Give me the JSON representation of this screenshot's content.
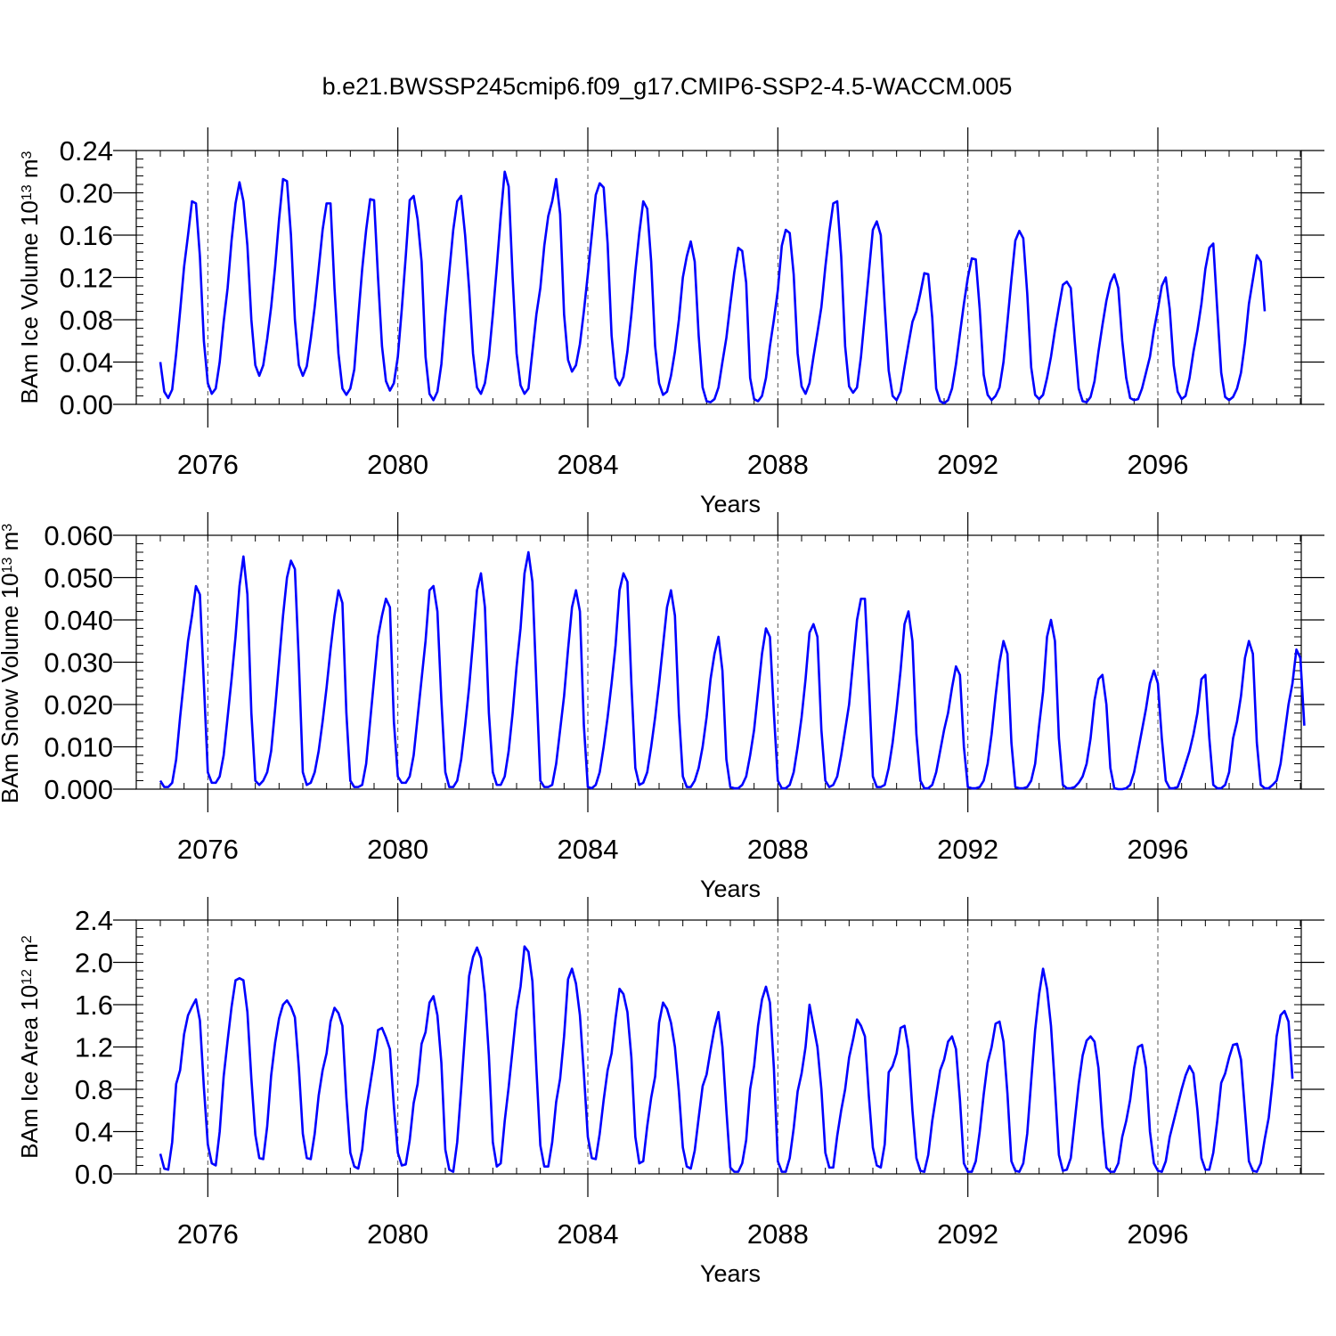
{
  "title": "b.e21.BWSSP245cmip6.f09_g17.CMIP6-SSP2-4.5-WACCM.005",
  "colors": {
    "line": "#0000ff",
    "axes": "#000000",
    "grid": "#000000"
  },
  "chart_data": [
    {
      "type": "line",
      "ylabel_main": "BAm Ice Volume 10",
      "ylabel_exp": "13",
      "ylabel_unit": " m",
      "ylabel_unit_exp": "3",
      "xlabel": "Years",
      "xlim": [
        2075,
        2099
      ],
      "ylim": [
        0,
        0.24
      ],
      "xticks": [
        2076,
        2080,
        2084,
        2088,
        2092,
        2096
      ],
      "xtick_labels": [
        "2076",
        "2080",
        "2084",
        "2088",
        "2092",
        "2096"
      ],
      "yticks": [
        0,
        0.04,
        0.08,
        0.12,
        0.16,
        0.2,
        0.24
      ],
      "ytick_labels": [
        "0.00",
        "0.04",
        "0.08",
        "0.12",
        "0.16",
        "0.20",
        "0.24"
      ],
      "minor_y_step": 0.008,
      "vertical_dashed_grid": true,
      "series": [
        {
          "x_start": 2075.0,
          "x_step": 0.08333333,
          "values": [
            0.04,
            0.012,
            0.006,
            0.014,
            0.048,
            0.088,
            0.13,
            0.16,
            0.192,
            0.19,
            0.14,
            0.06,
            0.02,
            0.01,
            0.015,
            0.04,
            0.078,
            0.11,
            0.155,
            0.19,
            0.21,
            0.192,
            0.15,
            0.08,
            0.037,
            0.027,
            0.037,
            0.062,
            0.092,
            0.13,
            0.175,
            0.213,
            0.211,
            0.16,
            0.08,
            0.037,
            0.027,
            0.036,
            0.062,
            0.092,
            0.128,
            0.165,
            0.19,
            0.19,
            0.11,
            0.048,
            0.015,
            0.009,
            0.015,
            0.033,
            0.082,
            0.128,
            0.165,
            0.194,
            0.193,
            0.12,
            0.055,
            0.022,
            0.013,
            0.02,
            0.045,
            0.09,
            0.14,
            0.193,
            0.197,
            0.175,
            0.135,
            0.045,
            0.01,
            0.004,
            0.012,
            0.038,
            0.085,
            0.125,
            0.165,
            0.192,
            0.197,
            0.16,
            0.11,
            0.048,
            0.016,
            0.01,
            0.02,
            0.045,
            0.085,
            0.13,
            0.178,
            0.22,
            0.206,
            0.12,
            0.048,
            0.018,
            0.01,
            0.015,
            0.05,
            0.085,
            0.11,
            0.15,
            0.178,
            0.192,
            0.213,
            0.18,
            0.085,
            0.042,
            0.031,
            0.037,
            0.057,
            0.088,
            0.123,
            0.16,
            0.198,
            0.209,
            0.205,
            0.152,
            0.065,
            0.025,
            0.018,
            0.026,
            0.05,
            0.085,
            0.126,
            0.162,
            0.192,
            0.185,
            0.135,
            0.055,
            0.02,
            0.009,
            0.012,
            0.027,
            0.05,
            0.08,
            0.12,
            0.14,
            0.154,
            0.135,
            0.065,
            0.016,
            0.003,
            0.002,
            0.005,
            0.016,
            0.04,
            0.063,
            0.095,
            0.125,
            0.148,
            0.145,
            0.115,
            0.025,
            0.005,
            0.003,
            0.008,
            0.025,
            0.055,
            0.08,
            0.108,
            0.15,
            0.165,
            0.162,
            0.123,
            0.048,
            0.017,
            0.01,
            0.02,
            0.045,
            0.068,
            0.092,
            0.13,
            0.163,
            0.19,
            0.192,
            0.14,
            0.055,
            0.017,
            0.011,
            0.016,
            0.045,
            0.085,
            0.125,
            0.165,
            0.173,
            0.16,
            0.093,
            0.032,
            0.008,
            0.004,
            0.012,
            0.035,
            0.057,
            0.078,
            0.088,
            0.105,
            0.124,
            0.123,
            0.082,
            0.015,
            0.003,
            0.001,
            0.004,
            0.015,
            0.038,
            0.067,
            0.095,
            0.12,
            0.138,
            0.137,
            0.09,
            0.028,
            0.009,
            0.004,
            0.008,
            0.016,
            0.04,
            0.078,
            0.118,
            0.155,
            0.164,
            0.157,
            0.105,
            0.035,
            0.009,
            0.005,
            0.009,
            0.025,
            0.045,
            0.07,
            0.092,
            0.113,
            0.116,
            0.11,
            0.06,
            0.015,
            0.003,
            0.002,
            0.007,
            0.022,
            0.05,
            0.075,
            0.098,
            0.115,
            0.123,
            0.11,
            0.06,
            0.025,
            0.006,
            0.004,
            0.005,
            0.015,
            0.03,
            0.045,
            0.07,
            0.09,
            0.112,
            0.12,
            0.09,
            0.037,
            0.012,
            0.005,
            0.008,
            0.025,
            0.05,
            0.07,
            0.095,
            0.128,
            0.148,
            0.152,
            0.09,
            0.03,
            0.007,
            0.004,
            0.007,
            0.015,
            0.03,
            0.058,
            0.095,
            0.118,
            0.141,
            0.135,
            0.088
          ]
        }
      ]
    },
    {
      "type": "line",
      "ylabel_main": "BAm Snow Volume 10",
      "ylabel_exp": "13",
      "ylabel_unit": " m",
      "ylabel_unit_exp": "3",
      "xlabel": "Years",
      "xlim": [
        2075,
        2099
      ],
      "ylim": [
        0,
        0.06
      ],
      "xticks": [
        2076,
        2080,
        2084,
        2088,
        2092,
        2096
      ],
      "xtick_labels": [
        "2076",
        "2080",
        "2084",
        "2088",
        "2092",
        "2096"
      ],
      "yticks": [
        0,
        0.01,
        0.02,
        0.03,
        0.04,
        0.05,
        0.06
      ],
      "ytick_labels": [
        "0.000",
        "0.010",
        "0.020",
        "0.030",
        "0.040",
        "0.050",
        "0.060"
      ],
      "minor_y_step": 0.002,
      "vertical_dashed_grid": true,
      "series": [
        {
          "x_start": 2075.0,
          "x_step": 0.08333333,
          "values": [
            0.002,
            0.0005,
            0.0005,
            0.0015,
            0.007,
            0.017,
            0.026,
            0.035,
            0.041,
            0.048,
            0.046,
            0.025,
            0.004,
            0.0015,
            0.0015,
            0.003,
            0.008,
            0.017,
            0.026,
            0.036,
            0.048,
            0.055,
            0.046,
            0.018,
            0.002,
            0.001,
            0.002,
            0.004,
            0.009,
            0.019,
            0.03,
            0.041,
            0.05,
            0.054,
            0.052,
            0.03,
            0.004,
            0.001,
            0.0015,
            0.004,
            0.009,
            0.016,
            0.024,
            0.033,
            0.041,
            0.047,
            0.044,
            0.018,
            0.002,
            0.0005,
            0.0005,
            0.001,
            0.006,
            0.016,
            0.026,
            0.036,
            0.041,
            0.045,
            0.043,
            0.016,
            0.003,
            0.0015,
            0.0015,
            0.003,
            0.008,
            0.017,
            0.026,
            0.035,
            0.047,
            0.048,
            0.042,
            0.021,
            0.004,
            0.0005,
            0.0005,
            0.002,
            0.007,
            0.015,
            0.024,
            0.035,
            0.047,
            0.051,
            0.043,
            0.018,
            0.004,
            0.001,
            0.001,
            0.003,
            0.009,
            0.018,
            0.029,
            0.038,
            0.051,
            0.056,
            0.049,
            0.025,
            0.002,
            0.0005,
            0.0005,
            0.001,
            0.006,
            0.014,
            0.022,
            0.033,
            0.043,
            0.047,
            0.042,
            0.015,
            0.0005,
            0.0002,
            0.001,
            0.004,
            0.01,
            0.017,
            0.025,
            0.034,
            0.047,
            0.051,
            0.049,
            0.025,
            0.005,
            0.001,
            0.0015,
            0.004,
            0.01,
            0.017,
            0.025,
            0.034,
            0.043,
            0.047,
            0.041,
            0.018,
            0.003,
            0.0005,
            0.0005,
            0.002,
            0.005,
            0.01,
            0.017,
            0.026,
            0.032,
            0.036,
            0.028,
            0.007,
            0.0005,
            0.0002,
            0.0002,
            0.001,
            0.003,
            0.008,
            0.014,
            0.023,
            0.032,
            0.038,
            0.036,
            0.018,
            0.002,
            0.0002,
            0.0002,
            0.001,
            0.004,
            0.01,
            0.017,
            0.026,
            0.037,
            0.039,
            0.036,
            0.014,
            0.002,
            0.0005,
            0.001,
            0.003,
            0.008,
            0.014,
            0.02,
            0.03,
            0.04,
            0.045,
            0.045,
            0.025,
            0.003,
            0.0005,
            0.0005,
            0.001,
            0.005,
            0.011,
            0.019,
            0.028,
            0.039,
            0.042,
            0.035,
            0.013,
            0.002,
            0.0002,
            0.0002,
            0.001,
            0.004,
            0.009,
            0.014,
            0.018,
            0.024,
            0.029,
            0.027,
            0.01,
            0.0005,
            0.0002,
            0.0002,
            0.0005,
            0.002,
            0.006,
            0.013,
            0.022,
            0.03,
            0.035,
            0.032,
            0.011,
            0.0005,
            0.0002,
            0.0002,
            0.0005,
            0.002,
            0.006,
            0.015,
            0.023,
            0.036,
            0.04,
            0.035,
            0.012,
            0.001,
            0.0002,
            0.0002,
            0.0005,
            0.0015,
            0.003,
            0.006,
            0.012,
            0.021,
            0.026,
            0.027,
            0.02,
            0.005,
            0.0002,
            0.0,
            0.0,
            0.0002,
            0.001,
            0.004,
            0.009,
            0.014,
            0.019,
            0.025,
            0.028,
            0.025,
            0.012,
            0.002,
            0.0002,
            0.0002,
            0.0005,
            0.003,
            0.006,
            0.009,
            0.013,
            0.018,
            0.026,
            0.027,
            0.012,
            0.001,
            0.0002,
            0.0002,
            0.001,
            0.004,
            0.012,
            0.016,
            0.022,
            0.031,
            0.035,
            0.032,
            0.011,
            0.001,
            0.0002,
            0.0002,
            0.001,
            0.002,
            0.006,
            0.013,
            0.02,
            0.025,
            0.033,
            0.031,
            0.015
          ]
        }
      ]
    },
    {
      "type": "line",
      "ylabel_main": "BAm Ice Area 10",
      "ylabel_exp": "12",
      "ylabel_unit": " m",
      "ylabel_unit_exp": "2",
      "xlabel": "Years",
      "xlim": [
        2075,
        2099
      ],
      "ylim": [
        0,
        2.4
      ],
      "xticks": [
        2076,
        2080,
        2084,
        2088,
        2092,
        2096
      ],
      "xtick_labels": [
        "2076",
        "2080",
        "2084",
        "2088",
        "2092",
        "2096"
      ],
      "yticks": [
        0,
        0.4,
        0.8,
        1.2,
        1.6,
        2.0,
        2.4
      ],
      "ytick_labels": [
        "0.0",
        "0.4",
        "0.8",
        "1.2",
        "1.6",
        "2.0",
        "2.4"
      ],
      "minor_y_step": 0.08,
      "vertical_dashed_grid": true,
      "series": [
        {
          "x_start": 2075.0,
          "x_step": 0.08333333,
          "values": [
            0.19,
            0.05,
            0.04,
            0.3,
            0.85,
            0.98,
            1.32,
            1.5,
            1.58,
            1.65,
            1.45,
            0.82,
            0.28,
            0.1,
            0.08,
            0.4,
            0.92,
            1.26,
            1.58,
            1.83,
            1.85,
            1.83,
            1.53,
            0.9,
            0.37,
            0.15,
            0.14,
            0.45,
            0.93,
            1.24,
            1.47,
            1.6,
            1.64,
            1.58,
            1.48,
            1.0,
            0.38,
            0.15,
            0.14,
            0.38,
            0.74,
            0.98,
            1.14,
            1.44,
            1.57,
            1.52,
            1.4,
            0.72,
            0.2,
            0.07,
            0.05,
            0.23,
            0.6,
            0.84,
            1.08,
            1.36,
            1.38,
            1.29,
            1.18,
            0.64,
            0.2,
            0.08,
            0.09,
            0.32,
            0.67,
            0.85,
            1.23,
            1.34,
            1.62,
            1.68,
            1.5,
            1.05,
            0.23,
            0.04,
            0.02,
            0.3,
            0.8,
            1.34,
            1.87,
            2.05,
            2.14,
            2.04,
            1.7,
            1.12,
            0.3,
            0.07,
            0.1,
            0.5,
            0.82,
            1.18,
            1.55,
            1.77,
            2.15,
            2.1,
            1.82,
            1.0,
            0.27,
            0.07,
            0.07,
            0.3,
            0.68,
            0.9,
            1.3,
            1.84,
            1.94,
            1.8,
            1.5,
            0.95,
            0.35,
            0.15,
            0.14,
            0.38,
            0.7,
            0.98,
            1.14,
            1.47,
            1.75,
            1.7,
            1.53,
            1.1,
            0.35,
            0.1,
            0.12,
            0.45,
            0.72,
            0.92,
            1.43,
            1.62,
            1.56,
            1.43,
            1.2,
            0.78,
            0.25,
            0.07,
            0.05,
            0.22,
            0.53,
            0.83,
            0.94,
            1.17,
            1.38,
            1.53,
            1.2,
            0.6,
            0.06,
            0.02,
            0.02,
            0.1,
            0.32,
            0.8,
            1.02,
            1.4,
            1.65,
            1.77,
            1.62,
            1.0,
            0.12,
            0.02,
            0.02,
            0.15,
            0.43,
            0.78,
            0.95,
            1.2,
            1.6,
            1.4,
            1.2,
            0.8,
            0.2,
            0.06,
            0.06,
            0.36,
            0.6,
            0.8,
            1.1,
            1.27,
            1.46,
            1.4,
            1.3,
            0.73,
            0.25,
            0.08,
            0.06,
            0.28,
            0.96,
            1.02,
            1.14,
            1.38,
            1.4,
            1.18,
            0.6,
            0.15,
            0.03,
            0.02,
            0.18,
            0.5,
            0.74,
            0.98,
            1.08,
            1.25,
            1.3,
            1.18,
            0.7,
            0.1,
            0.02,
            0.02,
            0.12,
            0.4,
            0.75,
            1.05,
            1.2,
            1.42,
            1.44,
            1.25,
            0.76,
            0.12,
            0.03,
            0.02,
            0.1,
            0.38,
            0.88,
            1.36,
            1.7,
            1.94,
            1.75,
            1.4,
            0.82,
            0.18,
            0.03,
            0.04,
            0.15,
            0.5,
            0.85,
            1.12,
            1.26,
            1.3,
            1.25,
            1.0,
            0.45,
            0.06,
            0.02,
            0.02,
            0.1,
            0.35,
            0.5,
            0.7,
            1.0,
            1.2,
            1.22,
            1.0,
            0.4,
            0.1,
            0.03,
            0.02,
            0.12,
            0.35,
            0.5,
            0.65,
            0.8,
            0.93,
            1.02,
            0.95,
            0.6,
            0.15,
            0.04,
            0.04,
            0.2,
            0.5,
            0.86,
            0.95,
            1.1,
            1.22,
            1.23,
            1.08,
            0.6,
            0.12,
            0.03,
            0.02,
            0.1,
            0.33,
            0.53,
            0.88,
            1.3,
            1.5,
            1.54,
            1.44,
            0.9
          ]
        }
      ]
    }
  ]
}
